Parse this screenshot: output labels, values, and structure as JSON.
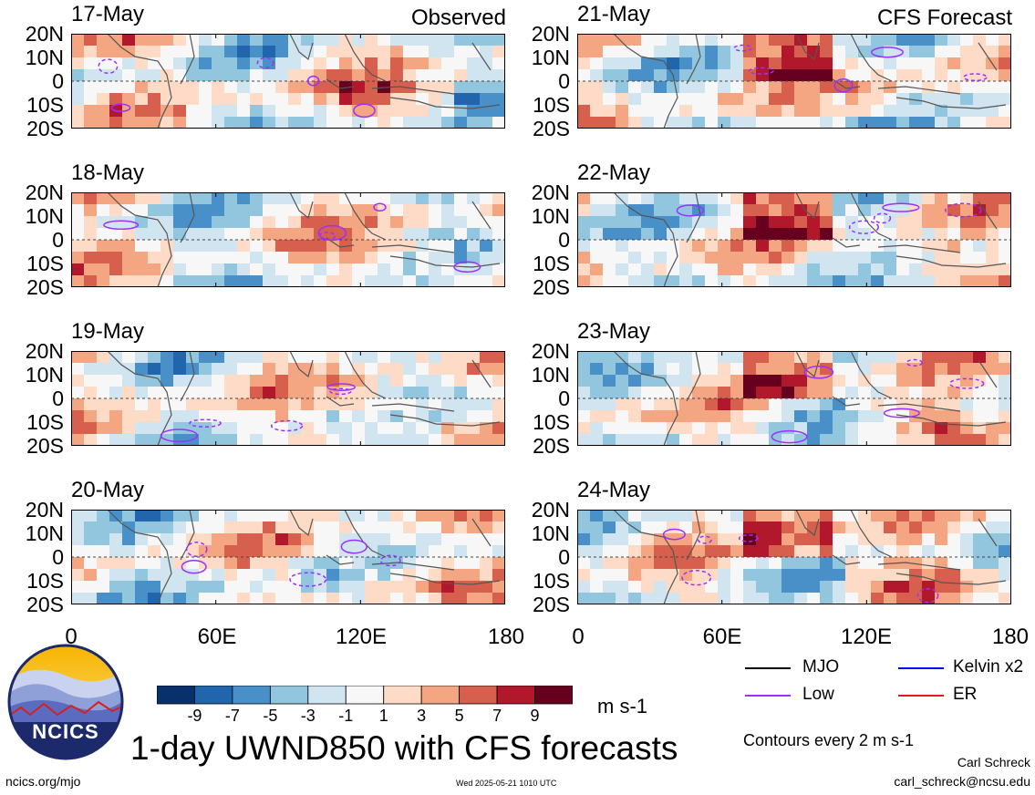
{
  "header": {
    "left_tag": "Observed",
    "right_tag": "CFS Forecast"
  },
  "lat_ticks": [
    "20N",
    "10N",
    "0",
    "10S",
    "20S"
  ],
  "lon_ticks": [
    "0",
    "60E",
    "120E",
    "180"
  ],
  "panels_left": [
    {
      "date": "17-May"
    },
    {
      "date": "18-May"
    },
    {
      "date": "19-May"
    },
    {
      "date": "20-May"
    }
  ],
  "panels_right": [
    {
      "date": "21-May"
    },
    {
      "date": "22-May"
    },
    {
      "date": "23-May"
    },
    {
      "date": "24-May"
    }
  ],
  "colorbar": {
    "labels": [
      "-9",
      "-7",
      "-5",
      "-3",
      "-1",
      "1",
      "3",
      "5",
      "7",
      "9"
    ],
    "colors": [
      "#08306b",
      "#2166ac",
      "#4a90c8",
      "#92c5de",
      "#d1e5f0",
      "#f7f7f7",
      "#fddbc7",
      "#f4a582",
      "#d6604d",
      "#b2182b",
      "#67001f"
    ],
    "units": "m s-1"
  },
  "legend": {
    "mjo": "MJO",
    "kelvin": "Kelvin x2",
    "low": "Low",
    "er": "ER",
    "colors": {
      "mjo": "#000000",
      "kelvin": "#0000ff",
      "low": "#9b30ff",
      "er": "#d62020"
    }
  },
  "title": "1-day UWND850 with CFS forecasts",
  "contour_note": "Contours every 2 m s-1",
  "author": "Carl Schreck",
  "email": "carl_schreck@ncsu.edu",
  "site": "ncics.org/mjo",
  "timestamp": "Wed 2025-05-21 1010 UTC",
  "logo_text": "NCICS",
  "chart_data": {
    "type": "heatmap",
    "variable": "UWND850",
    "units": "m s-1",
    "x_range": [
      0,
      180
    ],
    "y_range": [
      -20,
      20
    ],
    "x_ticks": [
      "0",
      "60E",
      "120E",
      "180"
    ],
    "y_ticks": [
      "20N",
      "10N",
      "0",
      "10S",
      "20S"
    ],
    "color_levels": [
      -9,
      -7,
      -5,
      -3,
      -1,
      1,
      3,
      5,
      7,
      9
    ],
    "dates_observed": [
      "17-May",
      "18-May",
      "19-May",
      "20-May"
    ],
    "dates_forecast": [
      "21-May",
      "22-May",
      "23-May",
      "24-May"
    ],
    "contour_interval": 2
  }
}
